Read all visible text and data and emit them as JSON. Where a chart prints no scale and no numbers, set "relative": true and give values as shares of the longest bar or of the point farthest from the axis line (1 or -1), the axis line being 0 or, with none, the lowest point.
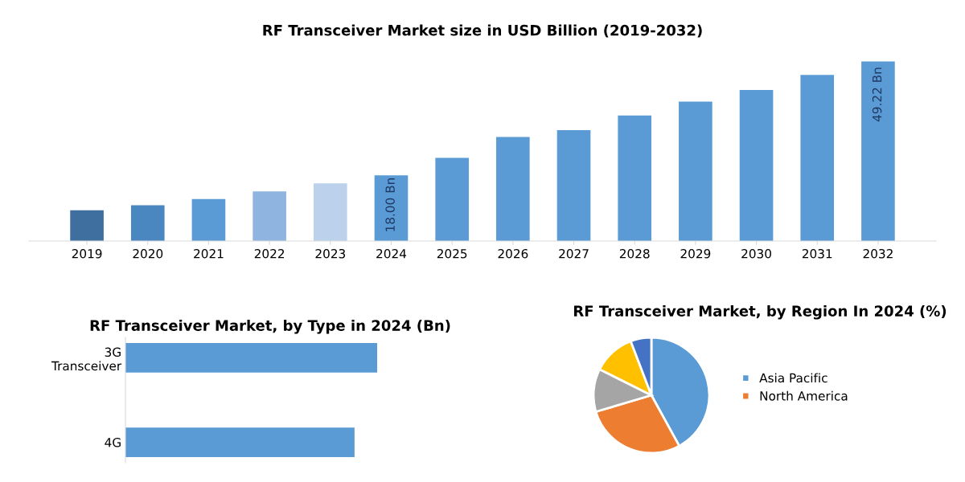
{
  "chart_data": [
    {
      "type": "bar",
      "title": "RF Transceiver Market size in USD Billion (2019-2032)",
      "categories": [
        "2019",
        "2020",
        "2021",
        "2022",
        "2023",
        "2024",
        "2025",
        "2026",
        "2027",
        "2028",
        "2029",
        "2030",
        "2031",
        "2032"
      ],
      "values": [
        8.4,
        9.8,
        11.5,
        13.6,
        15.8,
        18.0,
        22.8,
        28.5,
        30.4,
        34.4,
        38.2,
        41.4,
        45.5,
        49.22
      ],
      "colors": [
        "#3e6f9e",
        "#4a86c0",
        "#5b9bd5",
        "#8fb4e0",
        "#bcd2ec",
        "#5b9bd5",
        "#5b9bd5",
        "#5b9bd5",
        "#5b9bd5",
        "#5b9bd5",
        "#5b9bd5",
        "#5b9bd5",
        "#5b9bd5",
        "#5b9bd5"
      ],
      "value_labels": [
        null,
        null,
        null,
        null,
        null,
        "18.00 Bn",
        null,
        null,
        null,
        null,
        null,
        null,
        null,
        "49.22 Bn"
      ]
    },
    {
      "type": "bar",
      "orientation": "horizontal",
      "title": "RF Transceiver Market, by Type in 2024 (Bn)",
      "relative": true,
      "categories": [
        "3G\nTransceiver",
        "4G"
      ],
      "values": [
        1,
        0.91
      ],
      "color": "#5b9bd5"
    },
    {
      "type": "pie",
      "title": "RF Transceiver Market, by Region In 2024 (%)",
      "categories": [
        "Asia Pacific",
        "North America",
        null,
        null,
        null
      ],
      "values": [
        42,
        28.4,
        12,
        11.8,
        5.8
      ],
      "colors": [
        "#5b9bd5",
        "#ed7d31",
        "#a5a5a5",
        "#ffc000",
        "#4472c4"
      ],
      "legend": "right"
    }
  ]
}
